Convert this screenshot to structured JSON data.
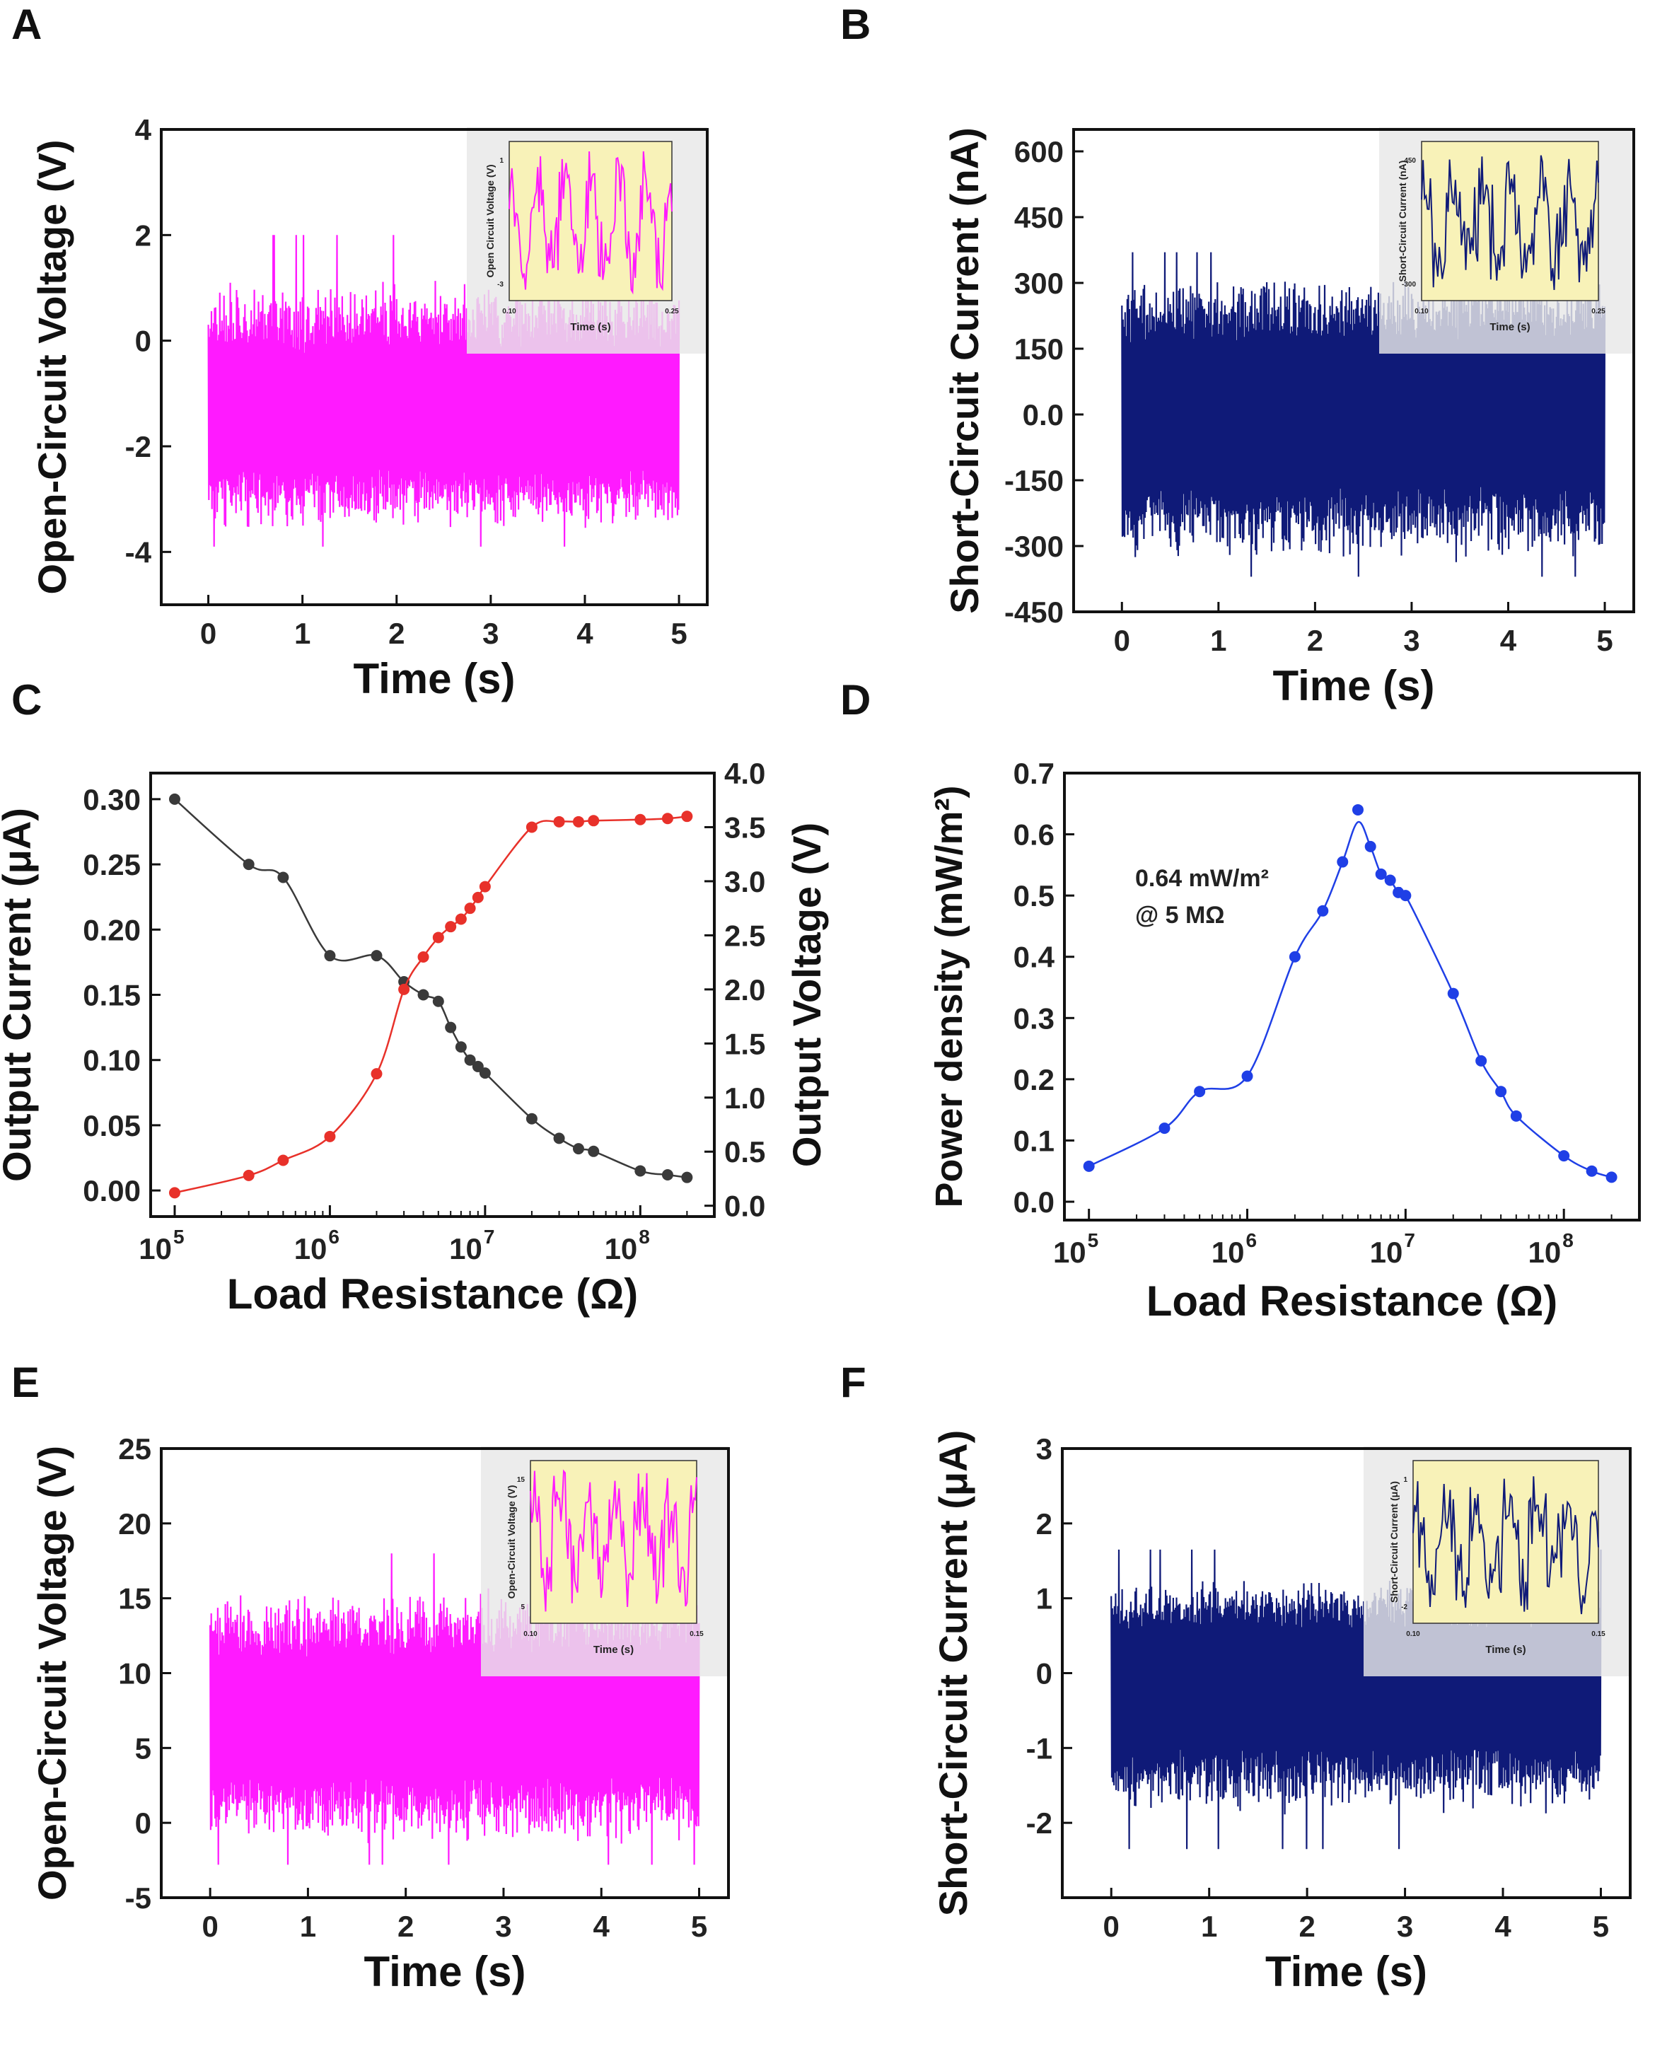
{
  "figure": {
    "panel_letters": [
      "A",
      "B",
      "C",
      "D",
      "E",
      "F"
    ],
    "colors": {
      "magenta": "#ff1aff",
      "navy": "#0f1a78",
      "red": "#e8312a",
      "gray": "#3a3a3a",
      "blue": "#1f3fe6",
      "inset_bg": "#f8f2b8"
    }
  },
  "chart_data": [
    {
      "panel": "A",
      "type": "line",
      "series_style": "dense-signal",
      "color": "#ff1aff",
      "xlabel": "Time (s)",
      "ylabel": "Open-Circuit Voltage (V)",
      "xlim": [
        -0.5,
        5.3
      ],
      "ylim": [
        -5,
        4
      ],
      "xticks": [
        "0",
        "1",
        "2",
        "3",
        "4",
        "5"
      ],
      "yticks": [
        "4",
        "2",
        "0",
        "-2",
        "-4"
      ],
      "signal": {
        "t_start": 0,
        "t_end": 5,
        "center": -1.3,
        "upper_envelope": [
          0.3,
          1.3
        ],
        "lower_envelope": [
          -3.0,
          -3.6
        ],
        "peak_max": 2.0,
        "peak_min": -3.9
      },
      "inset": {
        "xlabel": "Time (s)",
        "ylabel": "Open Circuit Voltage (V)",
        "x_from": "0.10",
        "x_to": "0.25",
        "y_top": "1",
        "y_bottom": "-3",
        "color": "#ff1aff"
      }
    },
    {
      "panel": "B",
      "type": "line",
      "series_style": "dense-signal",
      "color": "#0f1a78",
      "xlabel": "Time (s)",
      "ylabel": "Short-Circuit Current (nA)",
      "xlim": [
        -0.5,
        5.3
      ],
      "ylim": [
        -450,
        650
      ],
      "xticks": [
        "0",
        "1",
        "2",
        "3",
        "4",
        "5"
      ],
      "yticks": [
        "600",
        "450",
        "300",
        "150",
        "0.0",
        "-150",
        "-300",
        "-450"
      ],
      "signal": {
        "t_start": 0,
        "t_end": 5,
        "center": 0,
        "upper_envelope": [
          250,
          330
        ],
        "lower_envelope": [
          -250,
          -340
        ],
        "peak_max": 370,
        "peak_min": -370
      },
      "inset": {
        "xlabel": "Time (s)",
        "ylabel": "Short-Circuit Current (nA)",
        "x_from": "0.10",
        "x_to": "0.25",
        "y_top": "450",
        "y_bottom": "-300",
        "color": "#0f1a78"
      }
    },
    {
      "panel": "C",
      "type": "scatter",
      "xscale": "log",
      "xlabel": "Load Resistance (Ω)",
      "ylabel_left": "Output Current (μA)",
      "ylabel_right": "Output Voltage (V)",
      "xlim": [
        70000,
        300000000
      ],
      "ylim_left": [
        -0.02,
        0.32
      ],
      "ylim_right": [
        -0.1,
        4.0
      ],
      "xticks": [
        100000,
        1000000,
        10000000,
        100000000
      ],
      "xtick_base": "10",
      "xtick_exps": [
        "5",
        "6",
        "7",
        "8"
      ],
      "yticks_left": [
        "0.30",
        "0.25",
        "0.20",
        "0.15",
        "0.10",
        "0.05",
        "0.00"
      ],
      "yticks_right": [
        "4.0",
        "3.5",
        "3.0",
        "2.5",
        "2.0",
        "1.5",
        "1.0",
        "0.5",
        "0.0"
      ],
      "series": [
        {
          "name": "Output Current",
          "axis": "left",
          "color": "#3a3a3a",
          "x": [
            100000,
            300000,
            500000,
            1000000,
            2000000,
            3000000,
            4000000,
            5000000,
            6000000,
            7000000,
            8000000,
            9000000,
            10000000,
            20000000,
            30000000,
            40000000,
            50000000,
            100000000,
            150000000,
            200000000
          ],
          "y": [
            0.3,
            0.25,
            0.24,
            0.18,
            0.18,
            0.16,
            0.15,
            0.145,
            0.125,
            0.11,
            0.1,
            0.095,
            0.09,
            0.055,
            0.04,
            0.032,
            0.03,
            0.015,
            0.012,
            0.01
          ]
        },
        {
          "name": "Output Voltage",
          "axis": "right",
          "color": "#e8312a",
          "x": [
            100000,
            300000,
            500000,
            1000000,
            2000000,
            3000000,
            4000000,
            5000000,
            6000000,
            7000000,
            8000000,
            9000000,
            10000000,
            20000000,
            30000000,
            40000000,
            50000000,
            100000000,
            150000000,
            200000000
          ],
          "y": [
            0.12,
            0.28,
            0.42,
            0.64,
            1.22,
            2.0,
            2.3,
            2.48,
            2.58,
            2.65,
            2.75,
            2.85,
            2.95,
            3.5,
            3.55,
            3.55,
            3.56,
            3.57,
            3.58,
            3.6
          ]
        }
      ]
    },
    {
      "panel": "D",
      "type": "scatter",
      "xscale": "log",
      "xlabel": "Load Resistance (Ω)",
      "ylabel": "Power density (mW/m²)",
      "xlim": [
        70000,
        300000000
      ],
      "ylim": [
        -0.03,
        0.7
      ],
      "xticks": [
        100000,
        1000000,
        10000000,
        100000000
      ],
      "xtick_base": "10",
      "xtick_exps": [
        "5",
        "6",
        "7",
        "8"
      ],
      "yticks": [
        "0.7",
        "0.6",
        "0.5",
        "0.4",
        "0.3",
        "0.2",
        "0.1",
        "0.0"
      ],
      "annotation": {
        "line1": "0.64 mW/m²",
        "line2": "@ 5 MΩ"
      },
      "series": [
        {
          "name": "Power density",
          "color": "#1f3fe6",
          "x": [
            100000,
            300000,
            500000,
            1000000,
            2000000,
            3000000,
            4000000,
            5000000,
            6000000,
            7000000,
            8000000,
            9000000,
            10000000,
            20000000,
            30000000,
            40000000,
            50000000,
            100000000,
            150000000,
            200000000
          ],
          "y": [
            0.058,
            0.12,
            0.18,
            0.205,
            0.4,
            0.475,
            0.555,
            0.64,
            0.58,
            0.535,
            0.525,
            0.505,
            0.5,
            0.34,
            0.23,
            0.18,
            0.14,
            0.075,
            0.05,
            0.04
          ]
        }
      ]
    },
    {
      "panel": "E",
      "type": "line",
      "series_style": "dense-signal",
      "color": "#ff1aff",
      "xlabel": "Time (s)",
      "ylabel": "Open-Circuit Voltage (V)",
      "xlim": [
        -0.5,
        5.3
      ],
      "ylim": [
        -5,
        25
      ],
      "xticks": [
        "0",
        "1",
        "2",
        "3",
        "4",
        "5"
      ],
      "yticks": [
        "25",
        "20",
        "15",
        "10",
        "5",
        "0",
        "-5"
      ],
      "signal": {
        "t_start": 0,
        "t_end": 5,
        "center": 7,
        "upper_envelope": [
          13,
          16
        ],
        "lower_envelope": [
          1,
          -1.5
        ],
        "peak_max": 18,
        "peak_min": -2.8
      },
      "inset": {
        "xlabel": "Time (s)",
        "ylabel": "Open-Circuit Voltage (V)",
        "x_from": "0.10",
        "x_to": "0.15",
        "y_top": "15",
        "y_bottom": "5",
        "color": "#ff1aff"
      }
    },
    {
      "panel": "F",
      "type": "line",
      "series_style": "dense-signal",
      "color": "#0f1a78",
      "xlabel": "Time (s)",
      "ylabel": "Short-Circuit Current (μA)",
      "xlim": [
        -0.5,
        5.3
      ],
      "ylim": [
        -3,
        3
      ],
      "xticks": [
        "0",
        "1",
        "2",
        "3",
        "4",
        "5"
      ],
      "yticks": [
        "3",
        "2",
        "1",
        "0",
        "-1",
        "-2"
      ],
      "signal": {
        "t_start": 0,
        "t_end": 5,
        "center": -0.2,
        "upper_envelope": [
          1.0,
          1.3
        ],
        "lower_envelope": [
          -1.4,
          -1.9
        ],
        "peak_max": 1.65,
        "peak_min": -2.35
      },
      "inset": {
        "xlabel": "Time (s)",
        "ylabel": "Short-Circuit Current (μA)",
        "x_from": "0.10",
        "x_to": "0.15",
        "y_top": "1",
        "y_bottom": "-2",
        "color": "#0f1a78"
      }
    }
  ]
}
